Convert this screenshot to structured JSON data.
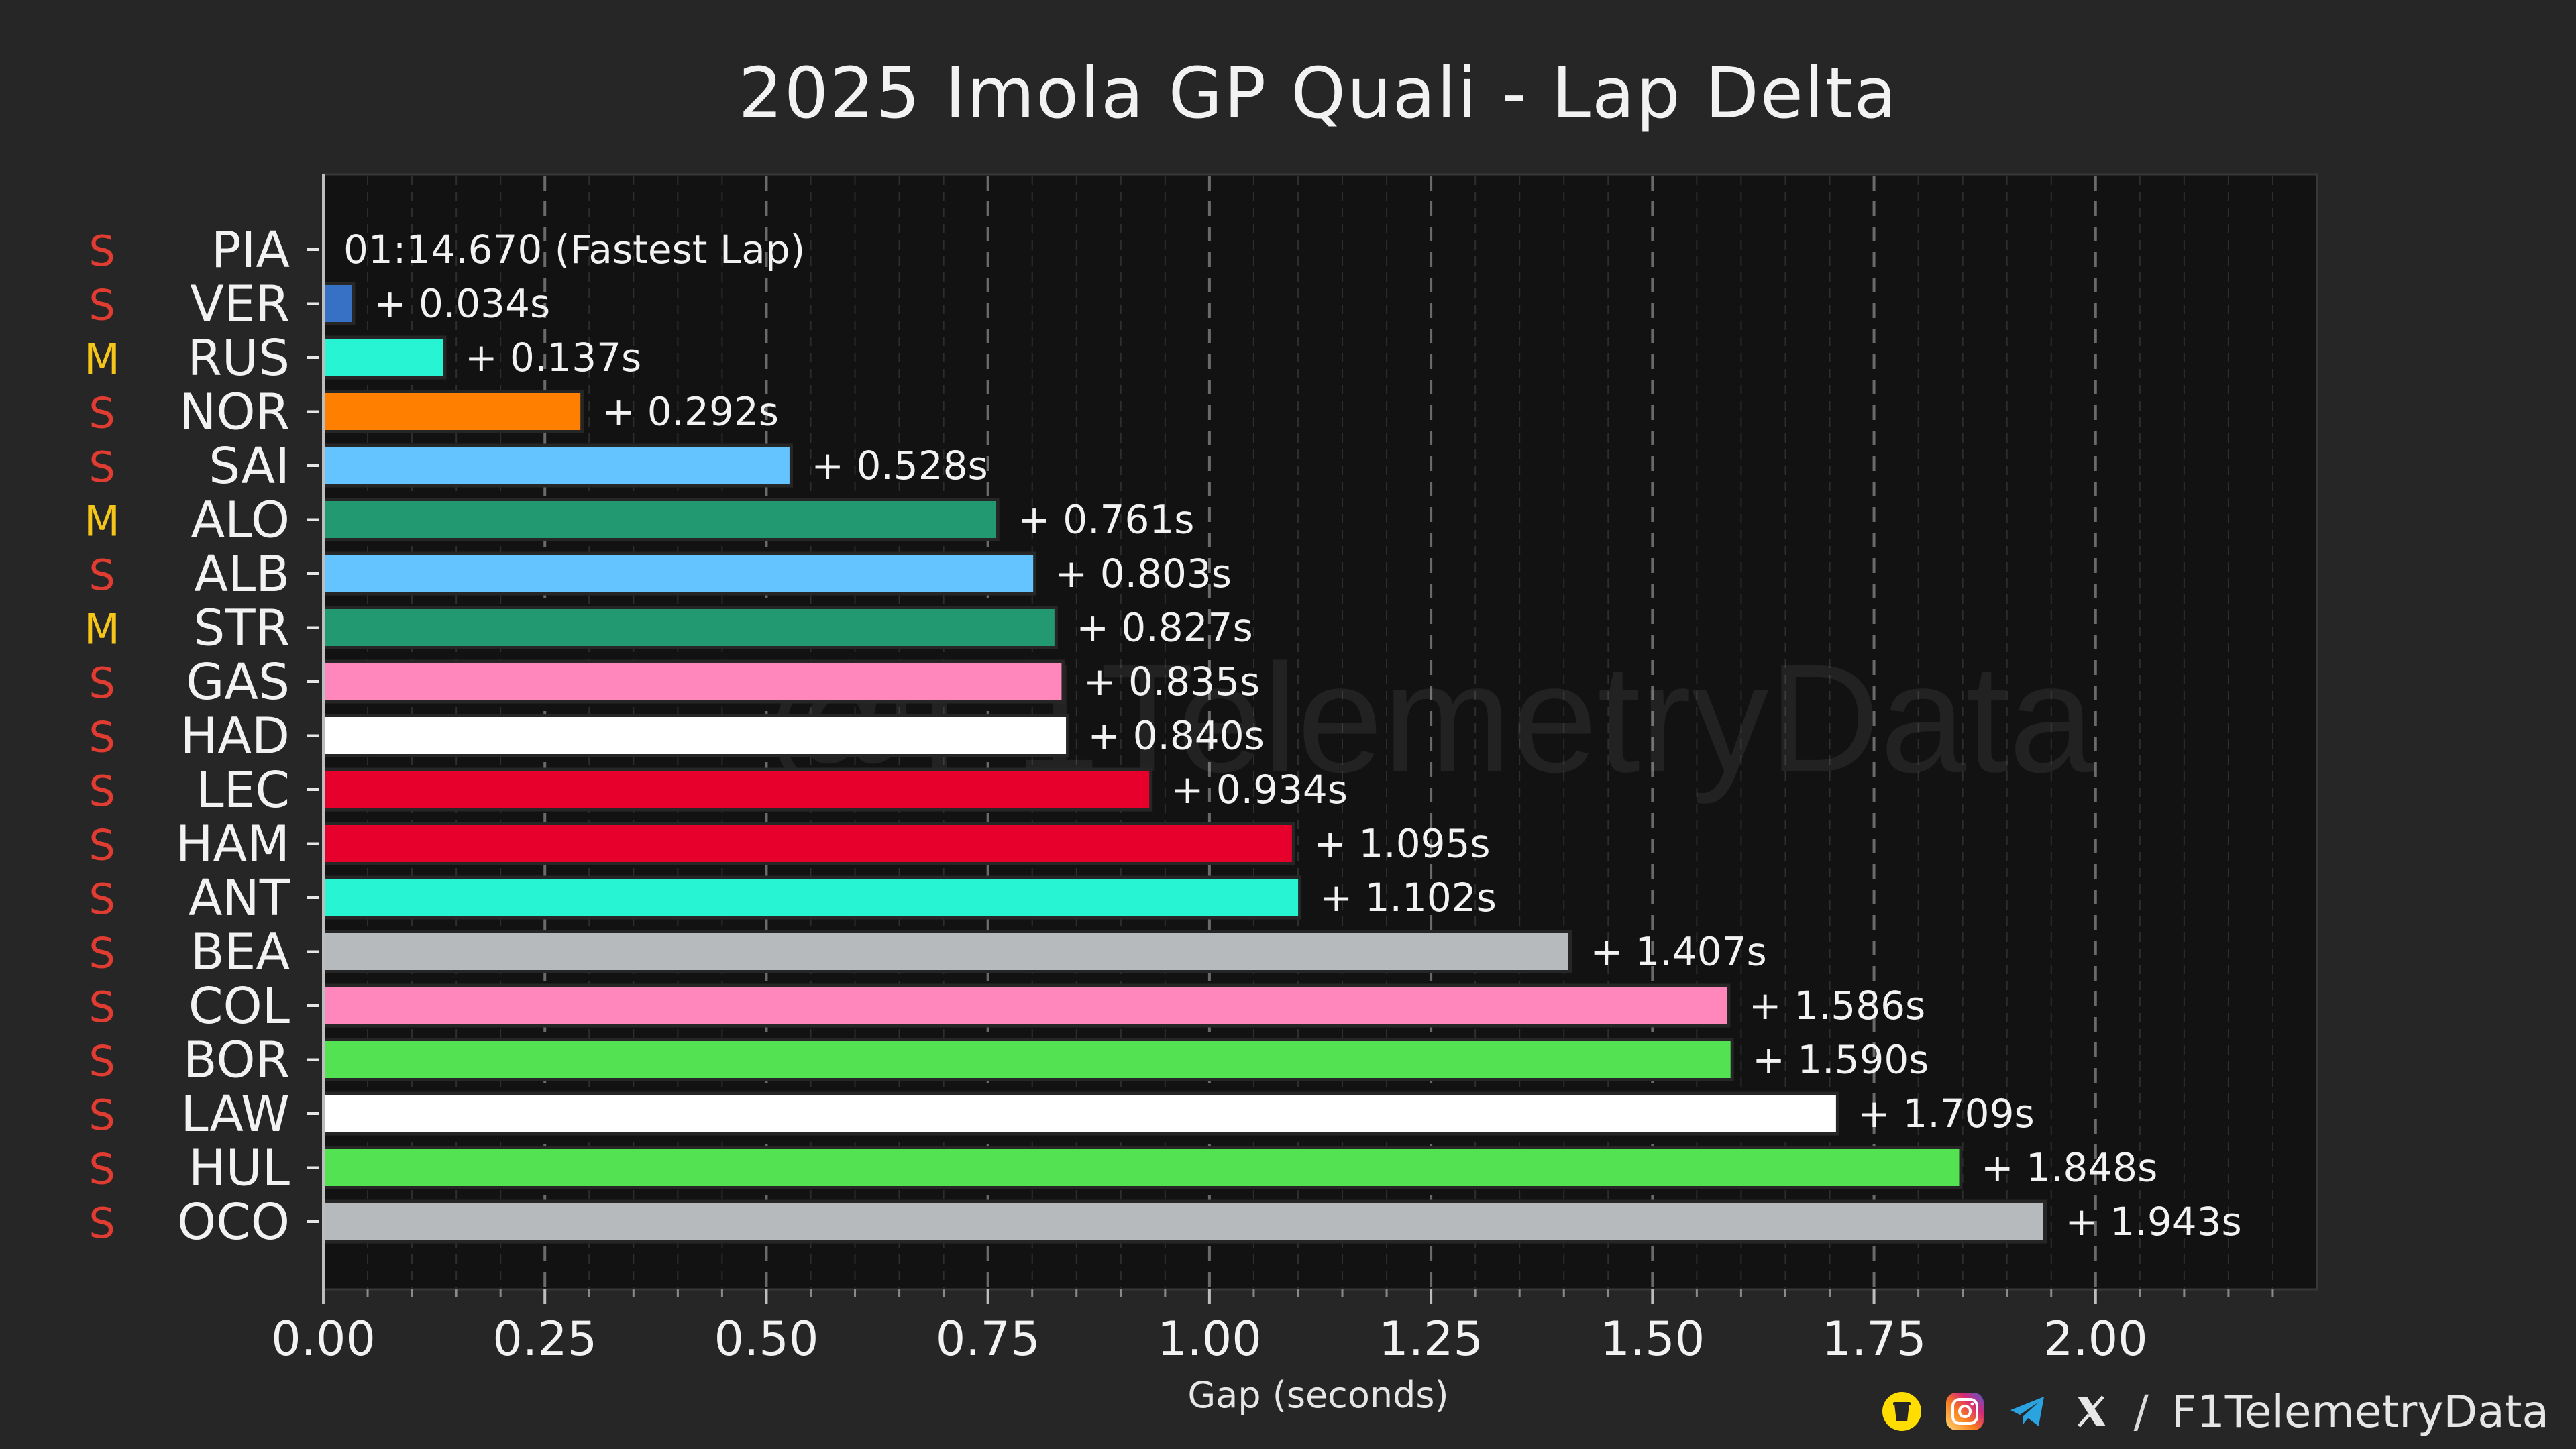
{
  "chart_data": {
    "type": "bar",
    "orientation": "horizontal",
    "title": "2025 Imola GP Quali - Lap Delta",
    "xlabel": "Gap (seconds)",
    "ylabel": "",
    "xlim": [
      0,
      2.25
    ],
    "x_ticks": [
      "0.00",
      "0.25",
      "0.50",
      "0.75",
      "1.00",
      "1.25",
      "1.50",
      "1.75",
      "2.00"
    ],
    "x_tick_values": [
      0,
      0.25,
      0.5,
      0.75,
      1.0,
      1.25,
      1.5,
      1.75,
      2.0
    ],
    "grid": "vertical dashed",
    "fastest_lap_label": "01:14.670 (Fastest Lap)",
    "watermark": "@F1TelemetryData",
    "drivers": [
      {
        "code": "PIA",
        "tyre": "S",
        "gap": 0.0,
        "label": "",
        "color": "#ff8000"
      },
      {
        "code": "VER",
        "tyre": "S",
        "gap": 0.034,
        "label": "+ 0.034s",
        "color": "#3671c6"
      },
      {
        "code": "RUS",
        "tyre": "M",
        "gap": 0.137,
        "label": "+ 0.137s",
        "color": "#27f4d2"
      },
      {
        "code": "NOR",
        "tyre": "S",
        "gap": 0.292,
        "label": "+ 0.292s",
        "color": "#ff8000"
      },
      {
        "code": "SAI",
        "tyre": "S",
        "gap": 0.528,
        "label": "+ 0.528s",
        "color": "#64c4ff"
      },
      {
        "code": "ALO",
        "tyre": "M",
        "gap": 0.761,
        "label": "+ 0.761s",
        "color": "#229971"
      },
      {
        "code": "ALB",
        "tyre": "S",
        "gap": 0.803,
        "label": "+ 0.803s",
        "color": "#64c4ff"
      },
      {
        "code": "STR",
        "tyre": "M",
        "gap": 0.827,
        "label": "+ 0.827s",
        "color": "#229971"
      },
      {
        "code": "GAS",
        "tyre": "S",
        "gap": 0.835,
        "label": "+ 0.835s",
        "color": "#ff87bc"
      },
      {
        "code": "HAD",
        "tyre": "S",
        "gap": 0.84,
        "label": "+ 0.840s",
        "color": "#ffffff"
      },
      {
        "code": "LEC",
        "tyre": "S",
        "gap": 0.934,
        "label": "+ 0.934s",
        "color": "#e8002d"
      },
      {
        "code": "HAM",
        "tyre": "S",
        "gap": 1.095,
        "label": "+ 1.095s",
        "color": "#e8002d"
      },
      {
        "code": "ANT",
        "tyre": "S",
        "gap": 1.102,
        "label": "+ 1.102s",
        "color": "#27f4d2"
      },
      {
        "code": "BEA",
        "tyre": "S",
        "gap": 1.407,
        "label": "+ 1.407s",
        "color": "#b6babd"
      },
      {
        "code": "COL",
        "tyre": "S",
        "gap": 1.586,
        "label": "+ 1.586s",
        "color": "#ff87bc"
      },
      {
        "code": "BOR",
        "tyre": "S",
        "gap": 1.59,
        "label": "+ 1.590s",
        "color": "#52e252"
      },
      {
        "code": "LAW",
        "tyre": "S",
        "gap": 1.709,
        "label": "+ 1.709s",
        "color": "#ffffff"
      },
      {
        "code": "HUL",
        "tyre": "S",
        "gap": 1.848,
        "label": "+ 1.848s",
        "color": "#52e252"
      },
      {
        "code": "OCO",
        "tyre": "S",
        "gap": 1.943,
        "label": "+ 1.943s",
        "color": "#b6babd"
      }
    ],
    "tyre_colors": {
      "S": "#e03c31",
      "M": "#f5c518"
    }
  },
  "footer": {
    "separator": "/",
    "handle": "F1TelemetryData",
    "icons": [
      "coffee-icon",
      "instagram-icon",
      "telegram-icon",
      "x-icon"
    ]
  }
}
